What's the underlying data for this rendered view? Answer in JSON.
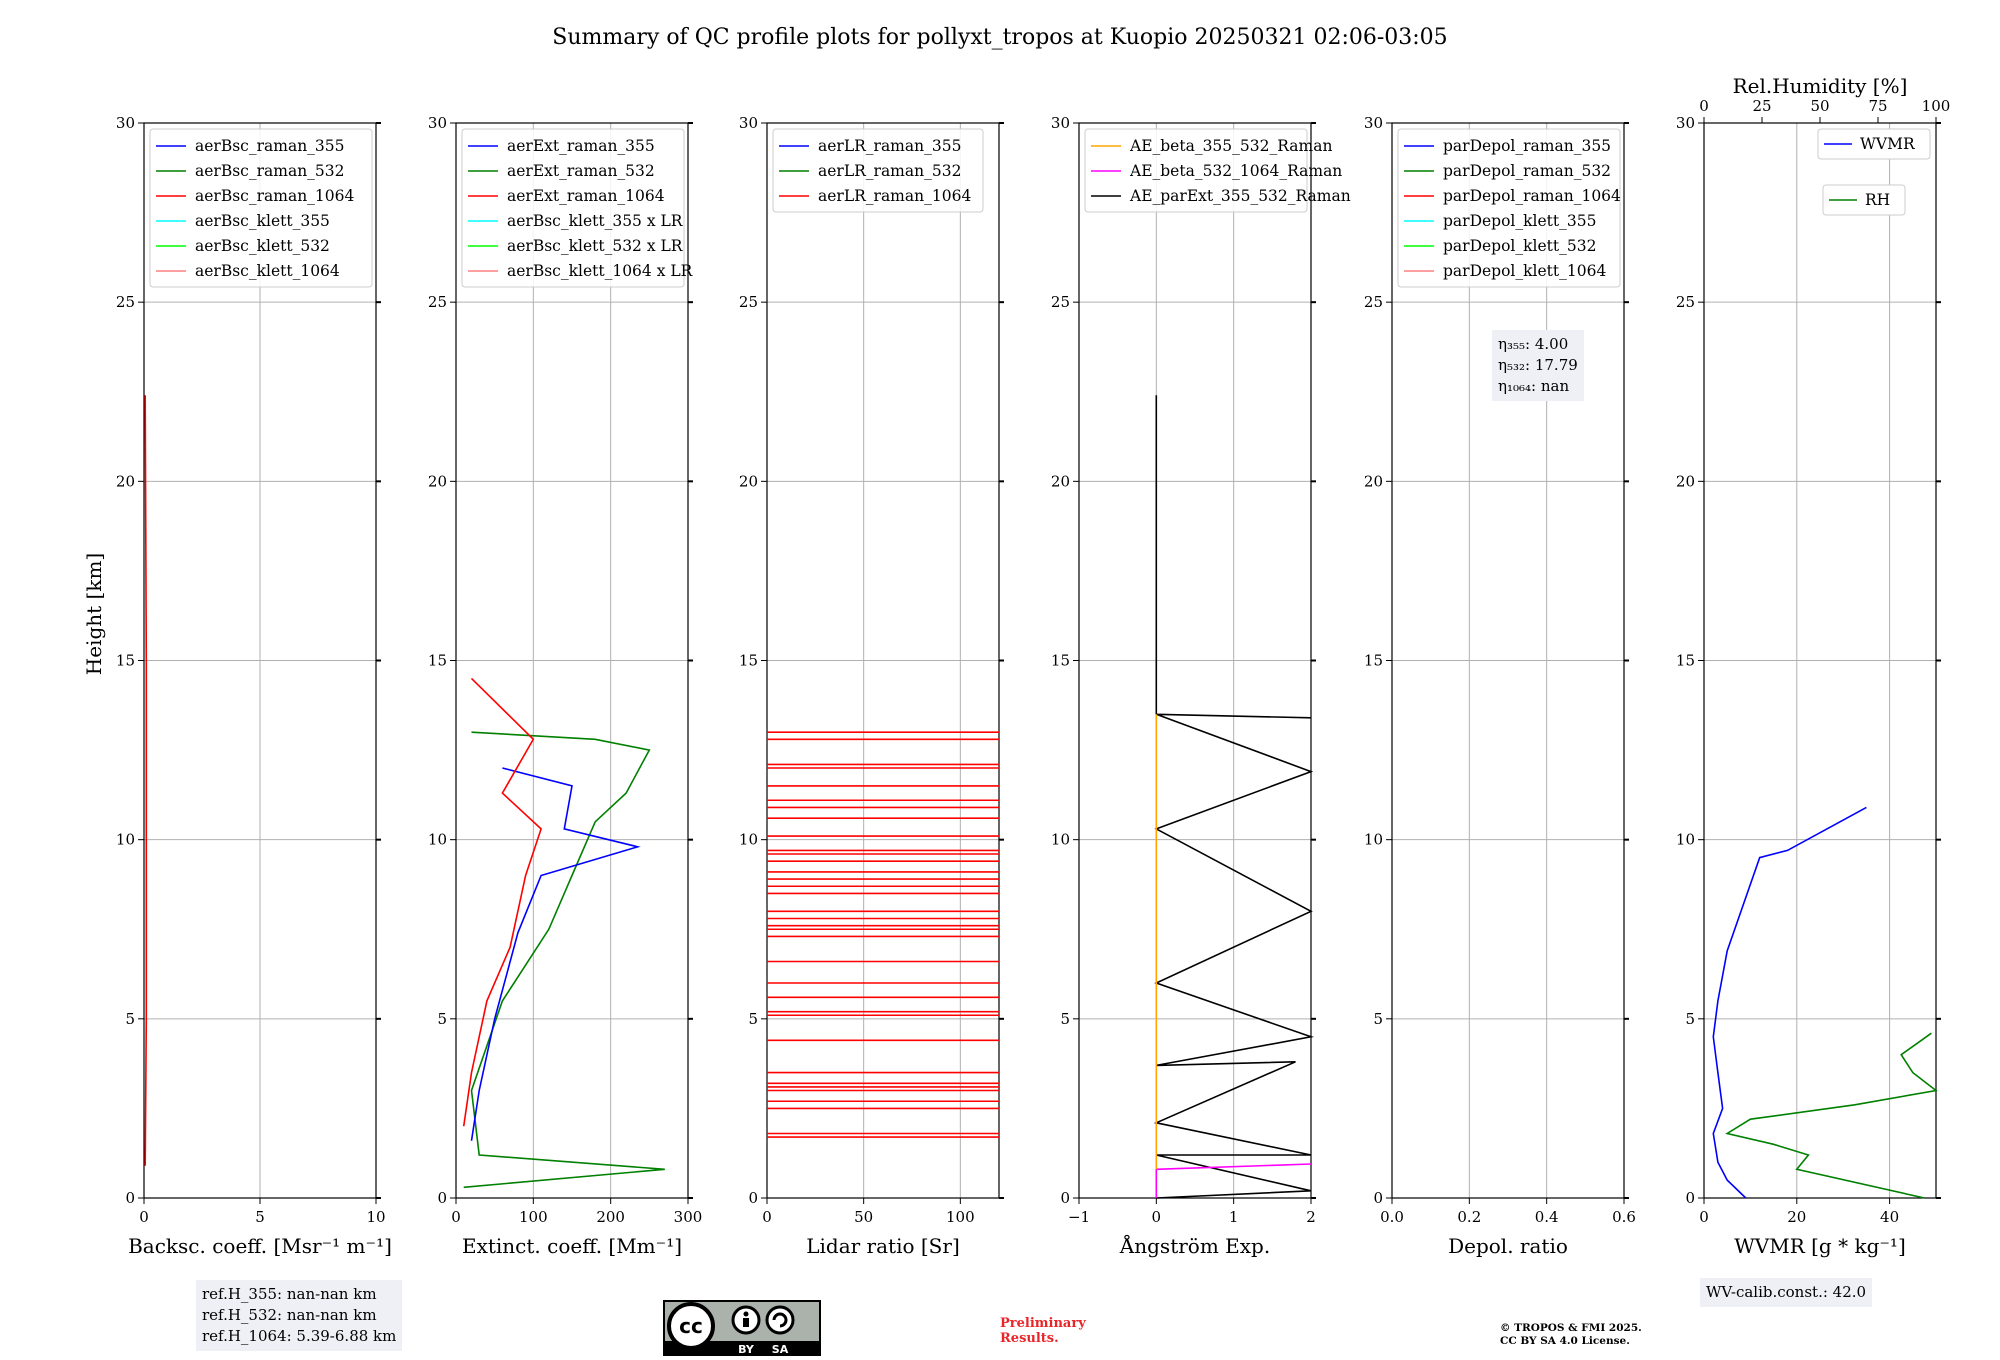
{
  "title": "Summary of QC profile plots for pollyxt_tropos at Kuopio 20250321 02:06-03:05",
  "ylabel": "Height [km]",
  "yticks": [
    "0",
    "5",
    "10",
    "15",
    "20",
    "25",
    "30"
  ],
  "panels": [
    {
      "id": "bsc",
      "xlabel": "Backsc. coeff. [Msr⁻¹ m⁻¹]",
      "xlim": [
        0,
        10
      ],
      "xticks": [
        "0",
        "5",
        "10"
      ],
      "legend": [
        {
          "label": "aerBsc_raman_355",
          "color": "#0000ff"
        },
        {
          "label": "aerBsc_raman_532",
          "color": "#008000"
        },
        {
          "label": "aerBsc_raman_1064",
          "color": "#ff0000"
        },
        {
          "label": "aerBsc_klett_355",
          "color": "#00ffff"
        },
        {
          "label": "aerBsc_klett_532",
          "color": "#00ff00"
        },
        {
          "label": "aerBsc_klett_1064",
          "color": "#ff8080"
        }
      ]
    },
    {
      "id": "ext",
      "xlabel": "Extinct. coeff. [Mm⁻¹]",
      "xlim": [
        0,
        300
      ],
      "xticks": [
        "0",
        "100",
        "200",
        "300"
      ],
      "legend": [
        {
          "label": "aerExt_raman_355",
          "color": "#0000ff"
        },
        {
          "label": "aerExt_raman_532",
          "color": "#008000"
        },
        {
          "label": "aerExt_raman_1064",
          "color": "#ff0000"
        },
        {
          "label": "aerBsc_klett_355 x LR",
          "color": "#00ffff"
        },
        {
          "label": "aerBsc_klett_532 x LR",
          "color": "#00ff00"
        },
        {
          "label": "aerBsc_klett_1064 x LR",
          "color": "#ff8080"
        }
      ]
    },
    {
      "id": "lr",
      "xlabel": "Lidar ratio [Sr]",
      "xlim": [
        0,
        120
      ],
      "xticks": [
        "0",
        "50",
        "100"
      ],
      "legend": [
        {
          "label": "aerLR_raman_355",
          "color": "#0000ff"
        },
        {
          "label": "aerLR_raman_532",
          "color": "#008000"
        },
        {
          "label": "aerLR_raman_1064",
          "color": "#ff0000"
        }
      ]
    },
    {
      "id": "ae",
      "xlabel": "Ångström Exp.",
      "xlim": [
        -1,
        2
      ],
      "xticks": [
        "−1",
        "0",
        "1",
        "2"
      ],
      "legend": [
        {
          "label": "AE_beta_355_532_Raman",
          "color": "#ffa500"
        },
        {
          "label": "AE_beta_532_1064_Raman",
          "color": "#ff00ff"
        },
        {
          "label": "AE_parExt_355_532_Raman",
          "color": "#000000"
        }
      ]
    },
    {
      "id": "dep",
      "xlabel": "Depol. ratio",
      "xlim": [
        0,
        0.6
      ],
      "xticks": [
        "0.0",
        "0.2",
        "0.4",
        "0.6"
      ],
      "legend": [
        {
          "label": "parDepol_raman_355",
          "color": "#0000ff"
        },
        {
          "label": "parDepol_raman_532",
          "color": "#008000"
        },
        {
          "label": "parDepol_raman_1064",
          "color": "#ff0000"
        },
        {
          "label": "parDepol_klett_355",
          "color": "#00ffff"
        },
        {
          "label": "parDepol_klett_532",
          "color": "#00ff00"
        },
        {
          "label": "parDepol_klett_1064",
          "color": "#ff8080"
        }
      ]
    },
    {
      "id": "wv",
      "xlabel": "WVMR [g * kg⁻¹]",
      "xlim": [
        0,
        50
      ],
      "xticks": [
        "0",
        "20",
        "40"
      ],
      "toplabel": "Rel.Humidity [%]",
      "topticks": [
        "0",
        "25",
        "50",
        "75",
        "100"
      ],
      "legend": [
        {
          "label": "WVMR",
          "color": "#0000ff"
        },
        {
          "label": "RH",
          "color": "#008000"
        }
      ]
    }
  ],
  "chart_data": {
    "type": "line",
    "ylim": [
      0,
      30
    ],
    "series_summary": [
      {
        "panel": "bsc",
        "name": "aerBsc_raman_1064",
        "color": "#ff0000",
        "points": [
          [
            0.05,
            0.9
          ],
          [
            0.1,
            5
          ],
          [
            0.1,
            10
          ],
          [
            0.1,
            15
          ],
          [
            0.05,
            22.4
          ]
        ]
      },
      {
        "panel": "ext",
        "name": "aerExt_raman_532",
        "color": "#008000",
        "points": [
          [
            10,
            0.3
          ],
          [
            270,
            0.8
          ],
          [
            30,
            1.2
          ],
          [
            20,
            3
          ],
          [
            60,
            5.5
          ],
          [
            120,
            7.5
          ],
          [
            150,
            9
          ],
          [
            180,
            10.5
          ],
          [
            220,
            11.3
          ],
          [
            250,
            12.5
          ],
          [
            180,
            12.8
          ],
          [
            20,
            13
          ]
        ]
      },
      {
        "panel": "ext",
        "name": "aerExt_raman_355",
        "color": "#0000ff",
        "points": [
          [
            20,
            1.6
          ],
          [
            30,
            3
          ],
          [
            50,
            5
          ],
          [
            80,
            7.4
          ],
          [
            110,
            9
          ],
          [
            235,
            9.8
          ],
          [
            140,
            10.3
          ],
          [
            150,
            11.5
          ],
          [
            60,
            12
          ]
        ]
      },
      {
        "panel": "ext",
        "name": "aerExt_raman_1064",
        "color": "#ff0000",
        "points": [
          [
            10,
            2
          ],
          [
            20,
            3.5
          ],
          [
            40,
            5.5
          ],
          [
            70,
            7
          ],
          [
            90,
            9
          ],
          [
            110,
            10.3
          ],
          [
            60,
            11.3
          ],
          [
            100,
            12.8
          ],
          [
            20,
            14.5
          ]
        ]
      },
      {
        "panel": "ae",
        "name": "AE_parExt_355_532_Raman",
        "color": "#000000",
        "points": [
          [
            0,
            0
          ],
          [
            2,
            0.2
          ],
          [
            0,
            1.2
          ],
          [
            2,
            1.2
          ],
          [
            0,
            2.1
          ],
          [
            1.8,
            3.8
          ],
          [
            0,
            3.7
          ],
          [
            2,
            4.5
          ],
          [
            0,
            6
          ],
          [
            2,
            8
          ],
          [
            0,
            10.3
          ],
          [
            2,
            11.9
          ],
          [
            0,
            13.5
          ],
          [
            2,
            13.4
          ],
          [
            0,
            13.5
          ],
          [
            0,
            22.4
          ]
        ]
      },
      {
        "panel": "ae",
        "name": "AE_beta_532_1064_Raman",
        "color": "#ff00ff",
        "points": [
          [
            0,
            0
          ],
          [
            0,
            0.8
          ],
          [
            2,
            0.95
          ]
        ]
      },
      {
        "panel": "ae",
        "name": "AE_beta_355_532_Raman",
        "color": "#ffa500",
        "points": [
          [
            0,
            0.8
          ],
          [
            0,
            13.5
          ]
        ]
      },
      {
        "panel": "wv",
        "name": "WVMR",
        "color": "#0000ff",
        "points": [
          [
            9,
            0
          ],
          [
            5,
            0.5
          ],
          [
            3,
            1
          ],
          [
            2,
            1.8
          ],
          [
            4,
            2.5
          ],
          [
            3,
            3.5
          ],
          [
            2,
            4.5
          ],
          [
            3,
            5.5
          ],
          [
            5,
            6.9
          ],
          [
            12,
            9.5
          ],
          [
            18,
            9.7
          ],
          [
            35,
            10.9
          ]
        ]
      },
      {
        "panel": "wv",
        "name": "RH (as % on top axis)",
        "color": "#008000",
        "points": [
          [
            95,
            0
          ],
          [
            40,
            0.8
          ],
          [
            45,
            1.2
          ],
          [
            30,
            1.5
          ],
          [
            10,
            1.8
          ],
          [
            20,
            2.2
          ],
          [
            65,
            2.6
          ],
          [
            100,
            3
          ],
          [
            90,
            3.5
          ],
          [
            85,
            4
          ],
          [
            98,
            4.6
          ]
        ]
      }
    ]
  },
  "info_boxes": {
    "refh": [
      "ref.H_355: nan-nan km",
      "ref.H_532: nan-nan km",
      "ref.H_1064: 5.39-6.88 km"
    ],
    "eta": [
      "η₃₅₅: 4.00",
      "η₅₃₂: 17.79",
      "η₁₀₆₄: nan"
    ],
    "wvcalib": "WV-calib.const.: 42.0"
  },
  "footer": {
    "preliminary": [
      "Preliminary",
      "Results."
    ],
    "copyright": [
      "© TROPOS & FMI 2025.",
      "CC BY SA 4.0 License."
    ],
    "cc_labels": [
      "cc",
      "BY",
      "SA"
    ]
  }
}
